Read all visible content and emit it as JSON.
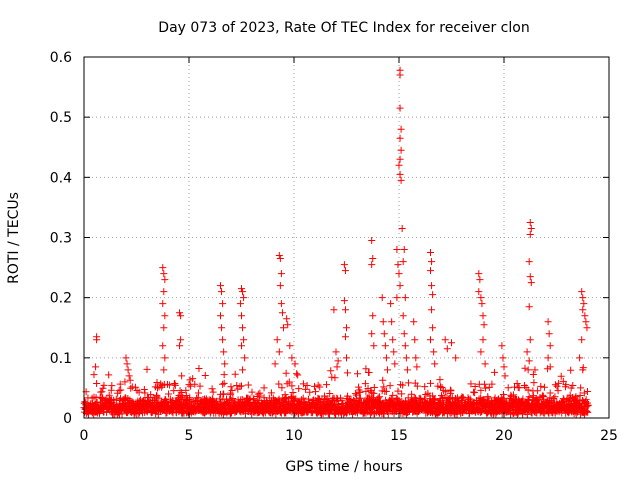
{
  "chart_data": {
    "type": "scatter",
    "title": "Day 073 of 2023, Rate Of TEC Index for receiver clon",
    "xlabel": "GPS time / hours",
    "ylabel": "ROTI / TECUs",
    "xlim": [
      0,
      25
    ],
    "ylim": [
      0,
      0.6
    ],
    "x_ticks": [
      0,
      5,
      10,
      15,
      20,
      25
    ],
    "x_tick_labels": [
      "0",
      "5",
      "10",
      "15",
      "20",
      "25"
    ],
    "y_ticks": [
      0,
      0.1,
      0.2,
      0.3,
      0.4,
      0.5,
      0.6
    ],
    "y_tick_labels": [
      "0",
      "0.1",
      "0.2",
      "0.3",
      "0.4",
      "0.5",
      "0.6"
    ],
    "grid": true,
    "marker": "+",
    "series": [
      {
        "name": "ROTI",
        "color": "#ff0000",
        "baseline": {
          "x_start": 0,
          "x_end": 24,
          "step": 0.025,
          "typical_max": 0.04
        },
        "points": [
          [
            0.6,
            0.135
          ],
          [
            0.6,
            0.13
          ],
          [
            0.55,
            0.085
          ],
          [
            2.0,
            0.1
          ],
          [
            2.05,
            0.09
          ],
          [
            2.1,
            0.08
          ],
          [
            2.15,
            0.07
          ],
          [
            1.95,
            0.06
          ],
          [
            3.75,
            0.25
          ],
          [
            3.8,
            0.24
          ],
          [
            3.85,
            0.23
          ],
          [
            3.8,
            0.21
          ],
          [
            3.75,
            0.19
          ],
          [
            3.85,
            0.17
          ],
          [
            3.8,
            0.15
          ],
          [
            3.75,
            0.12
          ],
          [
            3.85,
            0.1
          ],
          [
            3.8,
            0.08
          ],
          [
            4.55,
            0.175
          ],
          [
            4.6,
            0.17
          ],
          [
            4.6,
            0.13
          ],
          [
            4.55,
            0.12
          ],
          [
            4.65,
            0.07
          ],
          [
            6.5,
            0.22
          ],
          [
            6.55,
            0.21
          ],
          [
            6.6,
            0.19
          ],
          [
            6.5,
            0.17
          ],
          [
            6.55,
            0.15
          ],
          [
            6.6,
            0.13
          ],
          [
            6.65,
            0.11
          ],
          [
            6.7,
            0.09
          ],
          [
            7.5,
            0.215
          ],
          [
            7.55,
            0.21
          ],
          [
            7.6,
            0.2
          ],
          [
            7.45,
            0.19
          ],
          [
            7.5,
            0.17
          ],
          [
            7.55,
            0.15
          ],
          [
            7.6,
            0.13
          ],
          [
            7.5,
            0.12
          ],
          [
            7.65,
            0.1
          ],
          [
            7.55,
            0.08
          ],
          [
            9.3,
            0.27
          ],
          [
            9.35,
            0.265
          ],
          [
            9.4,
            0.24
          ],
          [
            9.35,
            0.22
          ],
          [
            9.4,
            0.19
          ],
          [
            9.45,
            0.175
          ],
          [
            9.5,
            0.15
          ],
          [
            9.2,
            0.13
          ],
          [
            9.3,
            0.11
          ],
          [
            9.1,
            0.09
          ],
          [
            9.65,
            0.165
          ],
          [
            9.7,
            0.155
          ],
          [
            9.8,
            0.12
          ],
          [
            9.9,
            0.1
          ],
          [
            10.05,
            0.09
          ],
          [
            11.9,
            0.18
          ],
          [
            12.0,
            0.11
          ],
          [
            12.1,
            0.095
          ],
          [
            12.05,
            0.085
          ],
          [
            12.4,
            0.255
          ],
          [
            12.45,
            0.245
          ],
          [
            12.4,
            0.195
          ],
          [
            12.45,
            0.18
          ],
          [
            12.5,
            0.15
          ],
          [
            12.45,
            0.135
          ],
          [
            12.5,
            0.1
          ],
          [
            12.55,
            0.075
          ],
          [
            13.7,
            0.295
          ],
          [
            13.75,
            0.265
          ],
          [
            13.7,
            0.255
          ],
          [
            13.75,
            0.17
          ],
          [
            13.7,
            0.14
          ],
          [
            13.8,
            0.12
          ],
          [
            14.2,
            0.2
          ],
          [
            14.25,
            0.16
          ],
          [
            14.3,
            0.14
          ],
          [
            14.35,
            0.12
          ],
          [
            14.4,
            0.1
          ],
          [
            14.45,
            0.08
          ],
          [
            14.6,
            0.19
          ],
          [
            14.65,
            0.16
          ],
          [
            14.7,
            0.13
          ],
          [
            14.75,
            0.11
          ],
          [
            14.8,
            0.09
          ],
          [
            14.9,
            0.28
          ],
          [
            14.95,
            0.255
          ],
          [
            15.0,
            0.24
          ],
          [
            15.05,
            0.22
          ],
          [
            14.9,
            0.2
          ],
          [
            15.05,
            0.578
          ],
          [
            15.05,
            0.57
          ],
          [
            15.05,
            0.515
          ],
          [
            15.1,
            0.48
          ],
          [
            15.05,
            0.465
          ],
          [
            15.1,
            0.445
          ],
          [
            15.05,
            0.43
          ],
          [
            15.0,
            0.42
          ],
          [
            15.05,
            0.405
          ],
          [
            15.1,
            0.395
          ],
          [
            15.15,
            0.315
          ],
          [
            15.25,
            0.28
          ],
          [
            15.2,
            0.26
          ],
          [
            15.3,
            0.2
          ],
          [
            15.2,
            0.17
          ],
          [
            15.25,
            0.14
          ],
          [
            15.3,
            0.12
          ],
          [
            15.35,
            0.1
          ],
          [
            15.4,
            0.08
          ],
          [
            15.7,
            0.16
          ],
          [
            15.75,
            0.13
          ],
          [
            15.8,
            0.1
          ],
          [
            15.85,
            0.085
          ],
          [
            16.5,
            0.275
          ],
          [
            16.55,
            0.26
          ],
          [
            16.5,
            0.245
          ],
          [
            16.55,
            0.22
          ],
          [
            16.6,
            0.205
          ],
          [
            16.55,
            0.18
          ],
          [
            16.6,
            0.15
          ],
          [
            16.5,
            0.13
          ],
          [
            16.65,
            0.11
          ],
          [
            16.7,
            0.09
          ],
          [
            17.2,
            0.13
          ],
          [
            17.3,
            0.115
          ],
          [
            17.5,
            0.125
          ],
          [
            17.7,
            0.1
          ],
          [
            18.8,
            0.24
          ],
          [
            18.85,
            0.23
          ],
          [
            18.8,
            0.21
          ],
          [
            18.9,
            0.2
          ],
          [
            18.95,
            0.19
          ],
          [
            19.0,
            0.17
          ],
          [
            19.05,
            0.155
          ],
          [
            19.0,
            0.13
          ],
          [
            18.9,
            0.11
          ],
          [
            19.1,
            0.09
          ],
          [
            19.9,
            0.12
          ],
          [
            19.95,
            0.1
          ],
          [
            20.0,
            0.085
          ],
          [
            20.05,
            0.07
          ],
          [
            21.25,
            0.325
          ],
          [
            21.3,
            0.315
          ],
          [
            21.25,
            0.305
          ],
          [
            21.2,
            0.26
          ],
          [
            21.25,
            0.235
          ],
          [
            21.3,
            0.225
          ],
          [
            21.2,
            0.185
          ],
          [
            21.25,
            0.13
          ],
          [
            21.1,
            0.11
          ],
          [
            21.2,
            0.095
          ],
          [
            21.15,
            0.08
          ],
          [
            22.1,
            0.16
          ],
          [
            22.15,
            0.14
          ],
          [
            22.2,
            0.12
          ],
          [
            22.1,
            0.1
          ],
          [
            22.2,
            0.085
          ],
          [
            23.7,
            0.21
          ],
          [
            23.75,
            0.2
          ],
          [
            23.8,
            0.19
          ],
          [
            23.75,
            0.18
          ],
          [
            23.85,
            0.17
          ],
          [
            23.9,
            0.16
          ],
          [
            23.95,
            0.15
          ],
          [
            23.7,
            0.13
          ],
          [
            23.6,
            0.1
          ],
          [
            23.75,
            0.08
          ]
        ]
      }
    ]
  }
}
